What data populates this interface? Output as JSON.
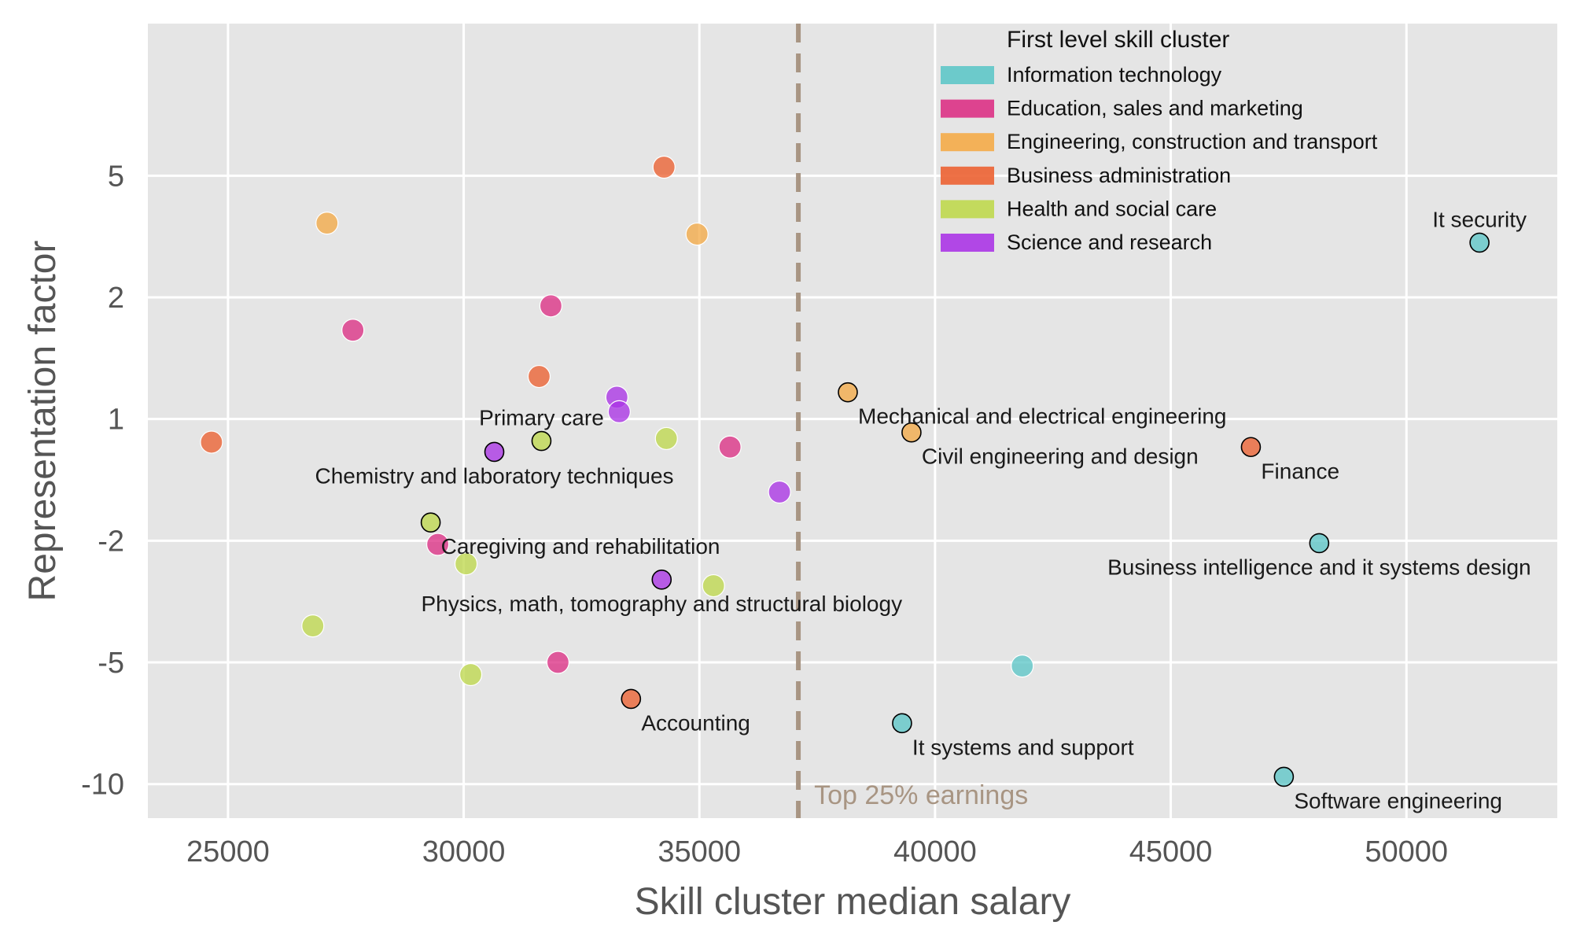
{
  "chart_data": {
    "type": "scatter",
    "xlabel": "Skill cluster median salary",
    "ylabel": "Representation factor",
    "xlim": [
      23300,
      53200
    ],
    "ylim_rank": [
      -0.28,
      6.25
    ],
    "x_ticks": [
      25000,
      30000,
      35000,
      40000,
      45000,
      50000
    ],
    "y_ticks": [
      {
        "label": "5",
        "rank": 5
      },
      {
        "label": "2",
        "rank": 4
      },
      {
        "label": "1",
        "rank": 3
      },
      {
        "label": "-2",
        "rank": 2
      },
      {
        "label": "-5",
        "rank": 1
      },
      {
        "label": "-10",
        "rank": 0
      }
    ],
    "grid": true,
    "background": "#e5e5e5",
    "threshold": {
      "x": 37100,
      "label": "Top 25% earnings",
      "color": "#a89583"
    },
    "legend": {
      "title": "First level skill cluster",
      "placement": "top-right",
      "items": [
        {
          "name": "Information technology",
          "color": "#5ec6c8"
        },
        {
          "name": "Education, sales and marketing",
          "color": "#dc3185"
        },
        {
          "name": "Engineering, construction and transport",
          "color": "#f4ab48"
        },
        {
          "name": "Business administration",
          "color": "#ec6232"
        },
        {
          "name": "Health and social care",
          "color": "#bfd84e"
        },
        {
          "name": "Science and research",
          "color": "#ab35e5"
        }
      ]
    },
    "points": [
      {
        "x": 51550,
        "rank": 4.45,
        "cat": 0,
        "label": "It security",
        "label_pos": "above",
        "highlight": true
      },
      {
        "x": 48150,
        "rank": 1.98,
        "cat": 0,
        "label": "Business intelligence and it systems design",
        "label_pos": "below",
        "highlight": true
      },
      {
        "x": 41850,
        "rank": 0.97,
        "cat": 0,
        "label": "",
        "highlight": false
      },
      {
        "x": 39300,
        "rank": 0.5,
        "cat": 0,
        "label": "It systems and support",
        "label_pos": "below-right",
        "highlight": true
      },
      {
        "x": 47400,
        "rank": 0.06,
        "cat": 0,
        "label": "Software engineering",
        "label_pos": "below-right",
        "highlight": true
      },
      {
        "x": 31850,
        "rank": 3.93,
        "cat": 1,
        "label": "",
        "highlight": false
      },
      {
        "x": 27650,
        "rank": 3.73,
        "cat": 1,
        "label": "",
        "highlight": false
      },
      {
        "x": 35650,
        "rank": 2.77,
        "cat": 1,
        "label": "",
        "highlight": false
      },
      {
        "x": 29450,
        "rank": 1.97,
        "cat": 1,
        "label": "",
        "highlight": false
      },
      {
        "x": 32000,
        "rank": 1.0,
        "cat": 1,
        "label": "",
        "highlight": false
      },
      {
        "x": 27100,
        "rank": 4.61,
        "cat": 2,
        "label": "",
        "highlight": false
      },
      {
        "x": 34950,
        "rank": 4.52,
        "cat": 2,
        "label": "",
        "highlight": false
      },
      {
        "x": 38150,
        "rank": 3.22,
        "cat": 2,
        "label": "Mechanical and electrical engineering",
        "label_pos": "below-right",
        "highlight": true
      },
      {
        "x": 39500,
        "rank": 2.89,
        "cat": 2,
        "label": "Civil engineering and design",
        "label_pos": "below-right",
        "highlight": true
      },
      {
        "x": 34250,
        "rank": 5.07,
        "cat": 3,
        "label": "",
        "highlight": false
      },
      {
        "x": 31600,
        "rank": 3.35,
        "cat": 3,
        "label": "",
        "highlight": false
      },
      {
        "x": 24650,
        "rank": 2.81,
        "cat": 3,
        "label": "",
        "highlight": false
      },
      {
        "x": 46700,
        "rank": 2.77,
        "cat": 3,
        "label": "Finance",
        "label_pos": "below-right",
        "highlight": true
      },
      {
        "x": 33550,
        "rank": 0.7,
        "cat": 3,
        "label": "Accounting",
        "label_pos": "below-right",
        "highlight": true
      },
      {
        "x": 31650,
        "rank": 2.82,
        "cat": 4,
        "label": "Primary care",
        "label_pos": "above",
        "highlight": true
      },
      {
        "x": 34300,
        "rank": 2.84,
        "cat": 4,
        "label": "",
        "highlight": false
      },
      {
        "x": 29300,
        "rank": 2.15,
        "cat": 4,
        "label": "Caregiving and rehabilitation",
        "label_pos": "below-right",
        "highlight": true
      },
      {
        "x": 30050,
        "rank": 1.81,
        "cat": 4,
        "label": "",
        "highlight": false
      },
      {
        "x": 35300,
        "rank": 1.63,
        "cat": 4,
        "label": "",
        "highlight": false
      },
      {
        "x": 26800,
        "rank": 1.3,
        "cat": 4,
        "label": "",
        "highlight": false
      },
      {
        "x": 30150,
        "rank": 0.9,
        "cat": 4,
        "label": "",
        "highlight": false
      },
      {
        "x": 33250,
        "rank": 3.18,
        "cat": 5,
        "label": "",
        "highlight": false
      },
      {
        "x": 33300,
        "rank": 3.06,
        "cat": 5,
        "label": "",
        "highlight": false
      },
      {
        "x": 30650,
        "rank": 2.73,
        "cat": 5,
        "label": "Chemistry and laboratory techniques",
        "label_pos": "below",
        "highlight": true
      },
      {
        "x": 36700,
        "rank": 2.4,
        "cat": 5,
        "label": "",
        "highlight": false
      },
      {
        "x": 34200,
        "rank": 1.68,
        "cat": 5,
        "label": "Physics, math, tomography and structural biology",
        "label_pos": "below",
        "highlight": true
      }
    ]
  }
}
